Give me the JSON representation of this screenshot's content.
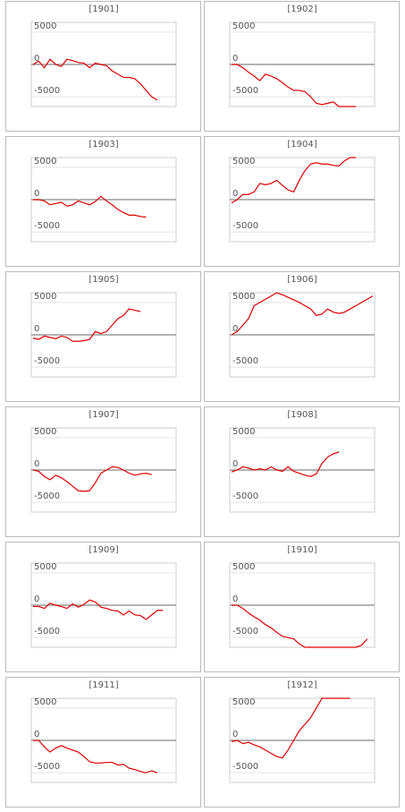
{
  "chart_data": [
    {
      "type": "line",
      "title": "[1901]",
      "color": "#e00000",
      "ylim": [
        -6500,
        6500
      ],
      "yticks": [
        -5000,
        0,
        5000
      ],
      "values": [
        0,
        500,
        -500,
        800,
        0,
        -300,
        800,
        600,
        300,
        200,
        -500,
        200,
        0,
        -200,
        -1000,
        -1500,
        -2000,
        -2000,
        -2200,
        -3000,
        -4000,
        -5000,
        -5500
      ]
    },
    {
      "type": "line",
      "title": "[1902]",
      "color": "#e00000",
      "ylim": [
        -6500,
        6500
      ],
      "yticks": [
        -5000,
        0,
        5000
      ],
      "values": [
        0,
        0,
        -500,
        -1200,
        -1800,
        -2500,
        -1500,
        -1800,
        -2200,
        -2800,
        -3500,
        -4000,
        -4000,
        -4200,
        -5000,
        -6000,
        -6200,
        -6000,
        -5800,
        -6500,
        -6500,
        -6500,
        -6500
      ]
    },
    {
      "type": "line",
      "title": "[1903]",
      "color": "#e00000",
      "ylim": [
        -6500,
        6500
      ],
      "yticks": [
        -5000,
        0,
        5000
      ],
      "values": [
        0,
        0,
        -200,
        -800,
        -600,
        -400,
        -1000,
        -800,
        -200,
        -500,
        -800,
        -300,
        500,
        -200,
        -800,
        -1500,
        -2000,
        -2400,
        -2400,
        -2600,
        -2700
      ]
    },
    {
      "type": "line",
      "title": "[1904]",
      "color": "#e00000",
      "ylim": [
        -6500,
        6500
      ],
      "yticks": [
        -5000,
        0,
        5000
      ],
      "values": [
        -500,
        0,
        800,
        800,
        1200,
        2500,
        2300,
        2500,
        3000,
        2200,
        1500,
        1200,
        3000,
        4500,
        5500,
        5700,
        5500,
        5500,
        5300,
        5200,
        6000,
        6500,
        6500
      ]
    },
    {
      "type": "line",
      "title": "[1905]",
      "color": "#e00000",
      "ylim": [
        -6500,
        6500
      ],
      "yticks": [
        -5000,
        0,
        5000
      ],
      "values": [
        -500,
        -700,
        -200,
        -400,
        -600,
        -200,
        -400,
        -1000,
        -1000,
        -900,
        -700,
        500,
        200,
        500,
        1500,
        2500,
        3000,
        4000,
        3800,
        3600
      ]
    },
    {
      "type": "line",
      "title": "[1906]",
      "color": "#e00000",
      "ylim": [
        -6500,
        6500
      ],
      "yticks": [
        -5000,
        0,
        5000
      ],
      "values": [
        0,
        500,
        1500,
        2500,
        4500,
        5000,
        5500,
        6000,
        6500,
        6200,
        5800,
        5400,
        5000,
        4500,
        4000,
        3000,
        3200,
        4000,
        3500,
        3300,
        3500,
        4000,
        4500,
        5000,
        5500,
        6000
      ]
    },
    {
      "type": "line",
      "title": "[1907]",
      "color": "#e00000",
      "ylim": [
        -6500,
        6500
      ],
      "yticks": [
        -5000,
        0,
        5000
      ],
      "values": [
        0,
        -200,
        -1000,
        -1500,
        -800,
        -1200,
        -1800,
        -2500,
        -3200,
        -3300,
        -3200,
        -2000,
        -500,
        0,
        500,
        400,
        0,
        -500,
        -800,
        -600,
        -500,
        -700
      ]
    },
    {
      "type": "line",
      "title": "[1908]",
      "color": "#e00000",
      "ylim": [
        -6500,
        6500
      ],
      "yticks": [
        -5000,
        0,
        5000
      ],
      "values": [
        -300,
        0,
        500,
        300,
        0,
        200,
        0,
        500,
        0,
        -200,
        500,
        -200,
        -500,
        -800,
        -1000,
        -600,
        1000,
        2000,
        2500,
        2800
      ]
    },
    {
      "type": "line",
      "title": "[1909]",
      "color": "#e00000",
      "ylim": [
        -6500,
        6500
      ],
      "yticks": [
        -5000,
        0,
        5000
      ],
      "values": [
        -200,
        -200,
        -500,
        300,
        0,
        -200,
        -500,
        200,
        -300,
        100,
        800,
        500,
        -300,
        -500,
        -800,
        -900,
        -1500,
        -900,
        -1500,
        -1600,
        -2200,
        -1500,
        -800,
        -800
      ]
    },
    {
      "type": "line",
      "title": "[1910]",
      "color": "#e00000",
      "ylim": [
        -6500,
        6500
      ],
      "yticks": [
        -5000,
        0,
        5000
      ],
      "values": [
        0,
        0,
        -500,
        -1200,
        -1800,
        -2300,
        -3000,
        -3500,
        -4200,
        -4800,
        -5000,
        -5200,
        -6000,
        -6500,
        -6500,
        -6500,
        -6500,
        -6500,
        -6500,
        -6500,
        -6500,
        -6500,
        -6500,
        -6200,
        -5200
      ]
    },
    {
      "type": "line",
      "title": "[1911]",
      "color": "#e00000",
      "ylim": [
        -6500,
        6500
      ],
      "yticks": [
        -5000,
        0,
        5000
      ],
      "values": [
        0,
        0,
        -1000,
        -1800,
        -1200,
        -800,
        -1200,
        -1500,
        -1800,
        -2500,
        -3300,
        -3500,
        -3500,
        -3400,
        -3400,
        -3800,
        -3700,
        -4300,
        -4500,
        -4800,
        -5000,
        -4700,
        -5000
      ]
    },
    {
      "type": "line",
      "title": "[1912]",
      "color": "#e00000",
      "ylim": [
        -6500,
        6500
      ],
      "yticks": [
        -5000,
        0,
        5000
      ],
      "values": [
        -200,
        0,
        -500,
        -300,
        -700,
        -1000,
        -1500,
        -2000,
        -2500,
        -2700,
        -1500,
        0,
        1500,
        2500,
        3500,
        5000,
        6500,
        6500,
        6500,
        6500,
        6500,
        6500
      ]
    }
  ]
}
